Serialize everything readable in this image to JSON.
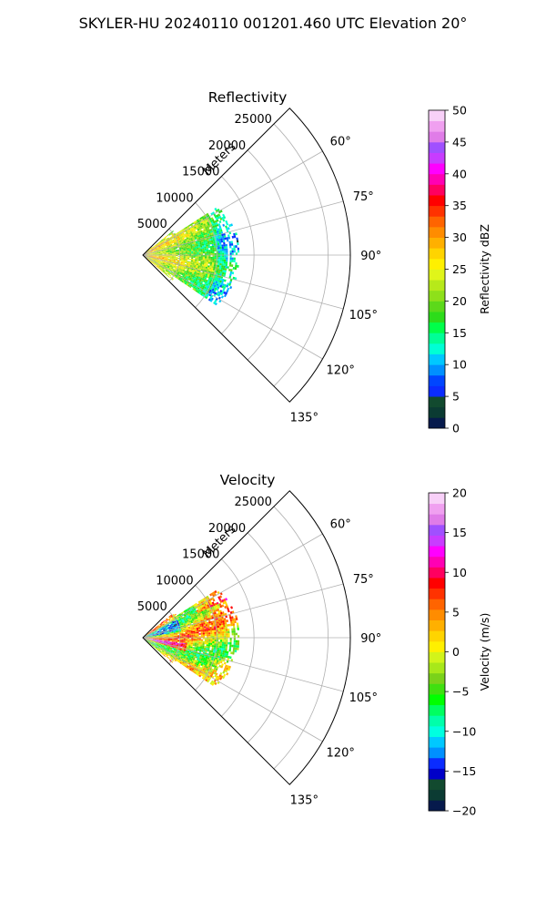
{
  "figure": {
    "title": "SKYLER-HU  20240110  001201.460 UTC Elevation 20°"
  },
  "chart_data": [
    {
      "type": "heatmap",
      "projection": "polar-sector",
      "title": "Reflectivity",
      "theta_range_deg": [
        45,
        135
      ],
      "theta_ticks_deg": [
        60,
        75,
        90,
        105,
        120,
        135
      ],
      "theta_tick_labels": [
        "60°",
        "75°",
        "90°",
        "105°",
        "120°",
        "135°"
      ],
      "r_label": "Meters",
      "r_max": 28000,
      "r_ticks": [
        5000,
        10000,
        15000,
        20000,
        25000
      ],
      "r_tick_labels": [
        "5000",
        "10000",
        "15000",
        "20000",
        "25000"
      ],
      "grid": true,
      "data_extent_m": 13000,
      "colorbar": {
        "label": "Reflectivity dBZ",
        "min": 0,
        "max": 50,
        "ticks": [
          0,
          5,
          10,
          15,
          20,
          25,
          30,
          35,
          40,
          45,
          50
        ],
        "tick_labels": [
          "0",
          "5",
          "10",
          "15",
          "20",
          "25",
          "30",
          "35",
          "40",
          "45",
          "50"
        ],
        "colors": [
          "#061a4c",
          "#0b3b33",
          "#124a2f",
          "#0b2cff",
          "#0046ff",
          "#0090ff",
          "#00c8ff",
          "#00ffd5",
          "#00ff96",
          "#00ff4a",
          "#2ddc1a",
          "#5cd91a",
          "#8ee01a",
          "#b7e91a",
          "#e0f51a",
          "#fff000",
          "#ffd400",
          "#ffb000",
          "#ff8c00",
          "#ff6400",
          "#ff3200",
          "#ff0000",
          "#ff0060",
          "#ff00b4",
          "#ff00ff",
          "#c83cff",
          "#a050ff",
          "#e07ce8",
          "#f0a0f0",
          "#f8d0f8"
        ]
      }
    },
    {
      "type": "heatmap",
      "projection": "polar-sector",
      "title": "Velocity",
      "theta_range_deg": [
        45,
        135
      ],
      "theta_ticks_deg": [
        60,
        75,
        90,
        105,
        120,
        135
      ],
      "theta_tick_labels": [
        "60°",
        "75°",
        "90°",
        "105°",
        "120°",
        "135°"
      ],
      "r_label": "Meters",
      "r_max": 28000,
      "r_ticks": [
        5000,
        10000,
        15000,
        20000,
        25000
      ],
      "r_tick_labels": [
        "5000",
        "10000",
        "15000",
        "20000",
        "25000"
      ],
      "grid": true,
      "data_extent_m": 13000,
      "colorbar": {
        "label": "Velocity (m/s)",
        "min": -20,
        "max": 20,
        "ticks": [
          -20,
          -15,
          -10,
          -5,
          0,
          5,
          10,
          15,
          20
        ],
        "tick_labels": [
          "−20",
          "−15",
          "−10",
          "−5",
          "0",
          "5",
          "10",
          "15",
          "20"
        ],
        "colors": [
          "#061a4c",
          "#0b3b33",
          "#124a2f",
          "#0000c8",
          "#0a2cff",
          "#0090ff",
          "#00c8ff",
          "#00ffe0",
          "#00ffaa",
          "#00ff60",
          "#00ff00",
          "#40e010",
          "#7ad21a",
          "#a8e81a",
          "#d2f41a",
          "#fff000",
          "#ffd400",
          "#ffb000",
          "#ff8c00",
          "#ff6400",
          "#ff3200",
          "#ff0000",
          "#ff0060",
          "#ff00b4",
          "#ff00ff",
          "#c83cff",
          "#a050ff",
          "#e07ce8",
          "#f0a0f0",
          "#f8d0f8"
        ]
      }
    }
  ]
}
